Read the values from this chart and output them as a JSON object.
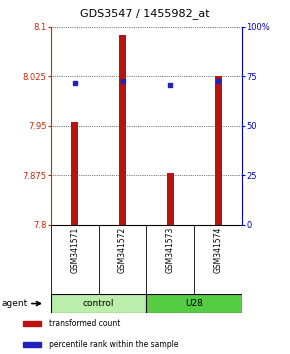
{
  "title": "GDS3547 / 1455982_at",
  "samples": [
    "GSM341571",
    "GSM341572",
    "GSM341573",
    "GSM341574"
  ],
  "bar_values": [
    7.955,
    8.087,
    7.878,
    8.025
  ],
  "percentile_values": [
    8.015,
    8.018,
    8.011,
    8.018
  ],
  "y_min": 7.8,
  "y_max": 8.1,
  "y_ticks": [
    7.8,
    7.875,
    7.95,
    8.025,
    8.1
  ],
  "y_tick_labels": [
    "7.8",
    "7.875",
    "7.95",
    "8.025",
    "8.1"
  ],
  "y2_ticks": [
    0,
    25,
    50,
    75,
    100
  ],
  "y2_tick_labels": [
    "0",
    "25",
    "50",
    "75",
    "100%"
  ],
  "bar_color": "#bb1111",
  "dot_color": "#2222bb",
  "bar_width": 0.15,
  "group_colors": {
    "control": "#bbeeaa",
    "U28": "#55cc44"
  },
  "group_label": "agent",
  "legend_items": [
    {
      "label": "transformed count",
      "color": "#bb1111"
    },
    {
      "label": "percentile rank within the sample",
      "color": "#2222bb"
    }
  ],
  "title_color": "#000000",
  "left_axis_color": "#cc2200",
  "right_axis_color": "#0000cc",
  "group_spans": [
    [
      "control",
      0,
      1
    ],
    [
      "U28",
      2,
      3
    ]
  ]
}
